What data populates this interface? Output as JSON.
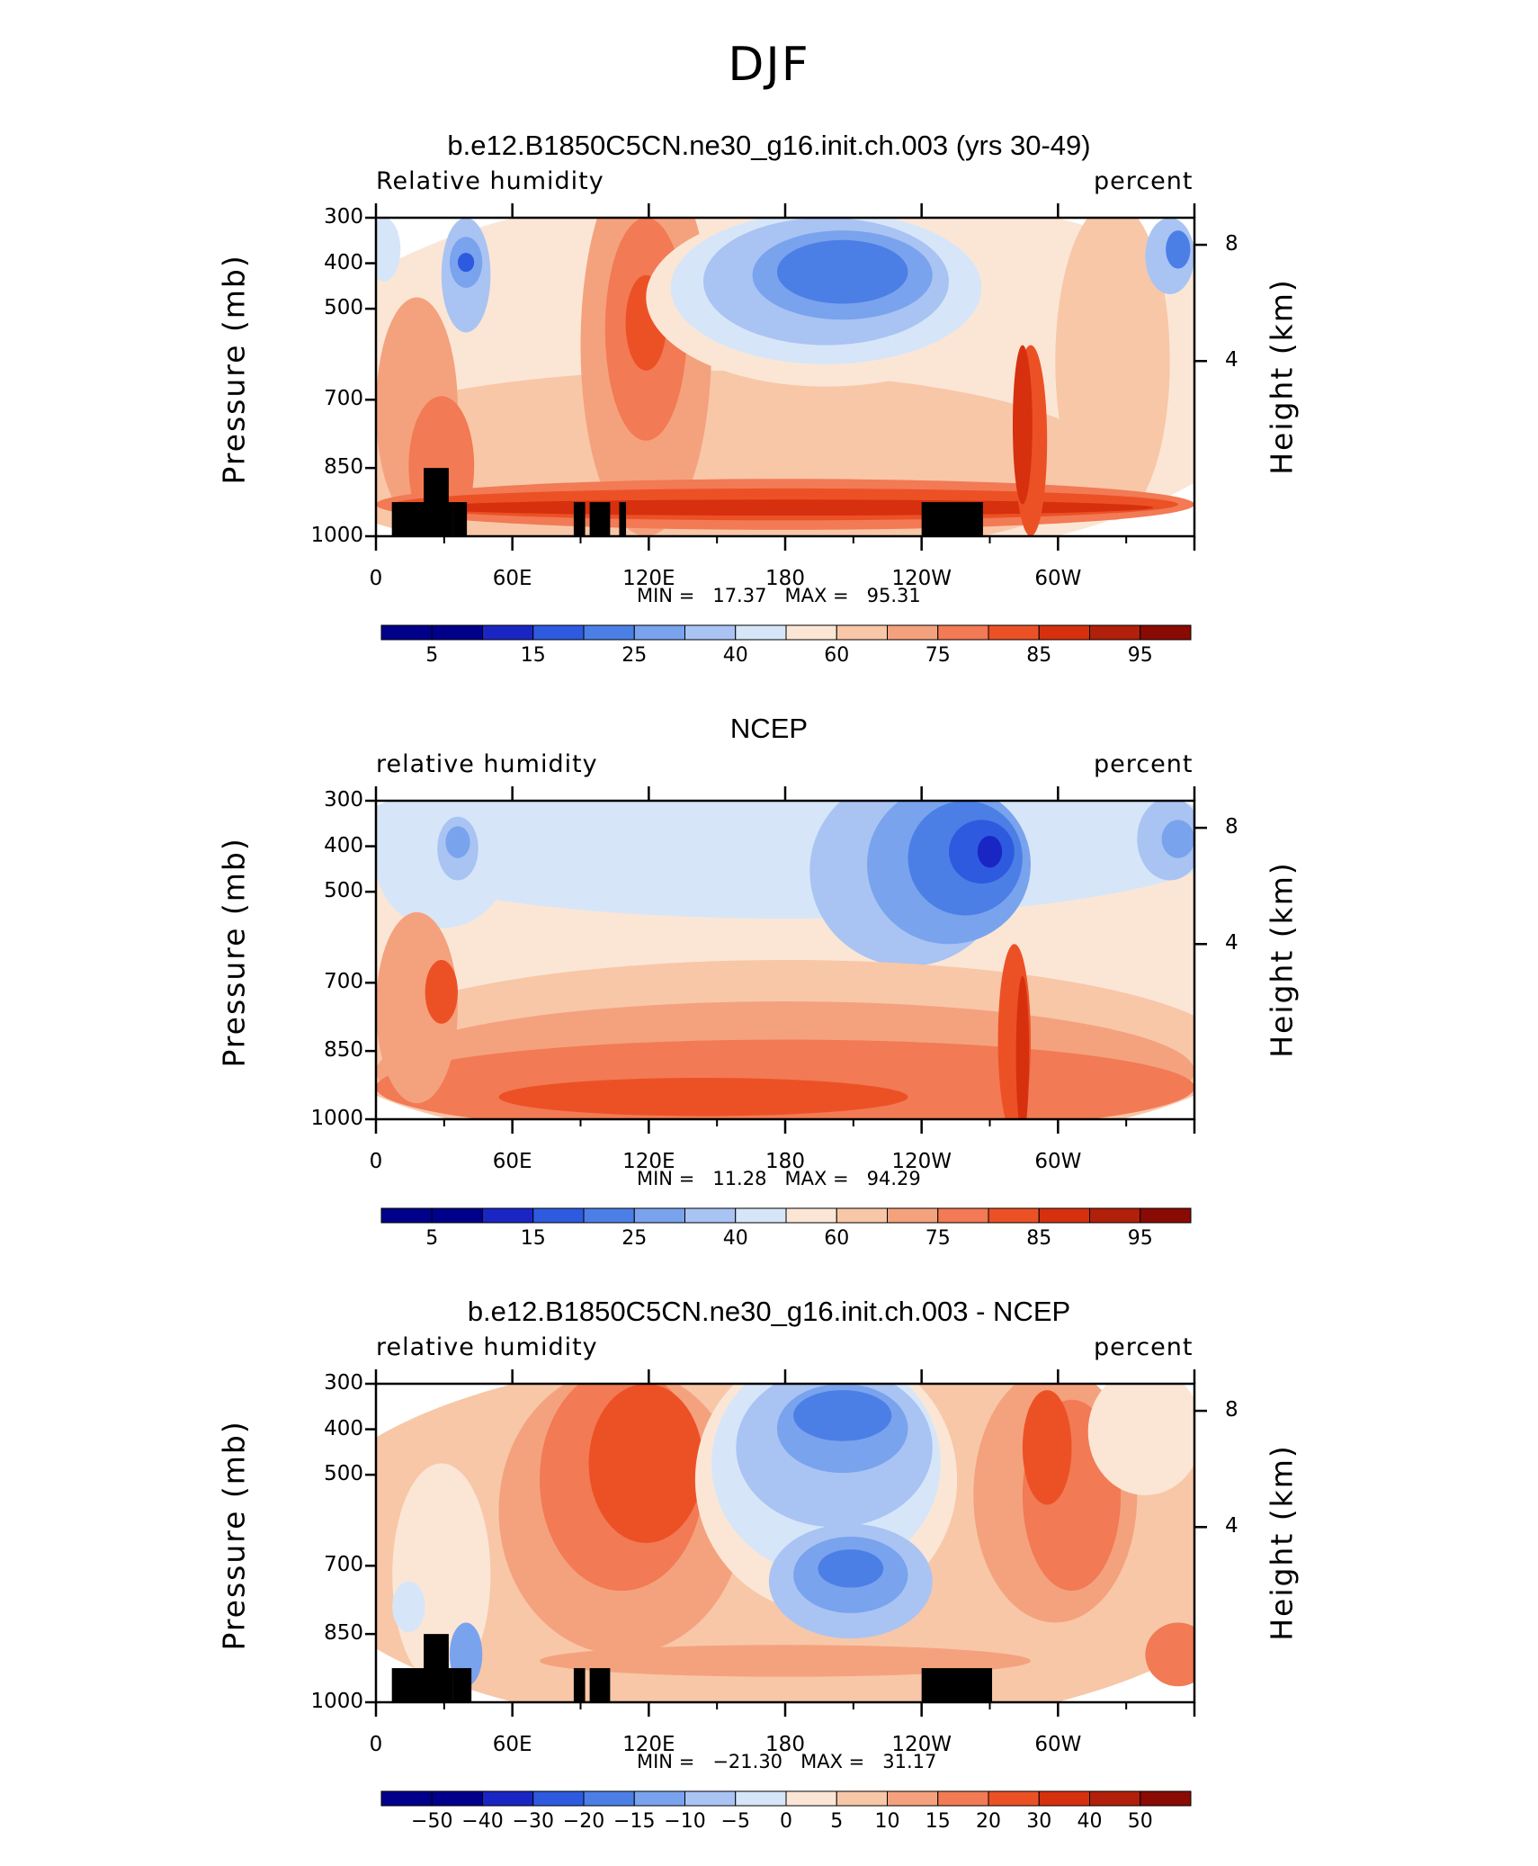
{
  "title": "DJF",
  "colors": {
    "palette": [
      "#00008a",
      "#1a26c4",
      "#2e5ae0",
      "#4c7fe6",
      "#7aa3ee",
      "#a9c4f3",
      "#d6e6f8",
      "#fbe6d6",
      "#f8c7a8",
      "#f4a27d",
      "#f27a54",
      "#ec5126",
      "#d6300e",
      "#b0200a",
      "#8a0b04"
    ],
    "land": "#000000"
  },
  "chart_data": [
    {
      "type": "heatmap",
      "title": "b.e12.B1850C5CN.ne30_g16.init.ch.003 (yrs 30-49)",
      "left_label": "Relative humidity",
      "right_label": "percent",
      "ylabel": "Pressure (mb)",
      "ylabel_right": "Height (km)",
      "x_ticks": [
        "0",
        "60E",
        "120E",
        "180",
        "120W",
        "60W"
      ],
      "y_ticks": [
        "300",
        "400",
        "500",
        "700",
        "850",
        "1000"
      ],
      "height_ticks": [
        "8",
        "4"
      ],
      "ylim": [
        1000,
        300
      ],
      "min_label": "MIN =",
      "min": "17.37",
      "max_label": "MAX =",
      "max": "95.31",
      "colorbar_ticks": [
        "5",
        "15",
        "25",
        "40",
        "60",
        "75",
        "85",
        "95"
      ]
    },
    {
      "type": "heatmap",
      "title": "NCEP",
      "left_label": "relative humidity",
      "right_label": "percent",
      "ylabel": "Pressure (mb)",
      "ylabel_right": "Height (km)",
      "x_ticks": [
        "0",
        "60E",
        "120E",
        "180",
        "120W",
        "60W"
      ],
      "y_ticks": [
        "300",
        "400",
        "500",
        "700",
        "850",
        "1000"
      ],
      "height_ticks": [
        "8",
        "4"
      ],
      "ylim": [
        1000,
        300
      ],
      "min_label": "MIN =",
      "min": "11.28",
      "max_label": "MAX =",
      "max": "94.29",
      "colorbar_ticks": [
        "5",
        "15",
        "25",
        "40",
        "60",
        "75",
        "85",
        "95"
      ]
    },
    {
      "type": "heatmap",
      "title": "b.e12.B1850C5CN.ne30_g16.init.ch.003 - NCEP",
      "left_label": "relative humidity",
      "right_label": "percent",
      "ylabel": "Pressure (mb)",
      "ylabel_right": "Height (km)",
      "x_ticks": [
        "0",
        "60E",
        "120E",
        "180",
        "120W",
        "60W"
      ],
      "y_ticks": [
        "300",
        "400",
        "500",
        "700",
        "850",
        "1000"
      ],
      "height_ticks": [
        "8",
        "4"
      ],
      "ylim": [
        1000,
        300
      ],
      "min_label": "MIN =",
      "min": "−21.30",
      "max_label": "MAX =",
      "max": "31.17",
      "colorbar_ticks": [
        "−50",
        "−40",
        "−30",
        "−20",
        "−15",
        "−10",
        "−5",
        "0",
        "5",
        "10",
        "15",
        "20",
        "30",
        "40",
        "50"
      ]
    }
  ]
}
